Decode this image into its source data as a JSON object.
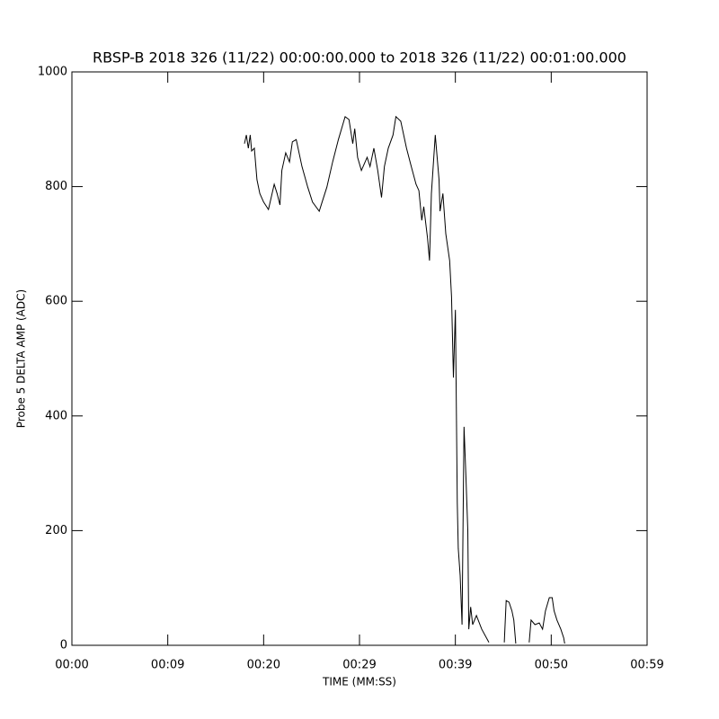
{
  "chart_data": {
    "type": "line",
    "title": "RBSP-B 2018 326 (11/22) 00:00:00.000 to 2018 326 (11/22) 00:01:00.000",
    "x_label": "TIME (MM:SS)",
    "y_label": "Probe 5 DELTA AMP (ADC)",
    "xlim": [
      0,
      60
    ],
    "ylim": [
      0,
      1000
    ],
    "xticks": [
      {
        "value": 0,
        "label": "00:00"
      },
      {
        "value": 10,
        "label": "00:09"
      },
      {
        "value": 20,
        "label": "00:20"
      },
      {
        "value": 30,
        "label": "00:29"
      },
      {
        "value": 40,
        "label": "00:39"
      },
      {
        "value": 50,
        "label": "00:50"
      },
      {
        "value": 60,
        "label": "00:59"
      }
    ],
    "yticks": [
      0,
      200,
      400,
      600,
      800,
      1000
    ],
    "color": "#000000",
    "x": [
      18.0,
      18.2,
      18.4,
      18.6,
      18.75,
      19.03,
      19.3,
      19.6,
      20.0,
      20.5,
      21.1,
      21.4,
      21.7,
      21.9,
      22.3,
      22.7,
      23.0,
      23.4,
      24.0,
      24.6,
      25.1,
      25.8,
      26.1,
      26.6,
      27.2,
      27.8,
      28.5,
      28.9,
      29.3,
      29.5,
      29.8,
      30.2,
      30.8,
      31.1,
      31.5,
      31.9,
      32.3,
      32.6,
      33.0,
      33.5,
      33.8,
      34.3,
      34.9,
      35.4,
      35.9,
      36.2,
      36.5,
      36.7,
      37.1,
      37.3,
      37.5,
      37.9,
      38.3,
      38.4,
      38.7,
      39.0,
      39.4,
      39.6,
      39.8,
      40.0,
      40.2,
      40.3,
      40.5,
      40.7,
      40.9,
      41.1,
      41.3,
      41.4,
      41.6,
      41.8,
      42.2,
      42.75,
      43.5,
      44.3,
      45.1,
      45.3,
      45.6,
      45.9,
      46.1,
      46.3,
      47.0,
      47.7,
      47.9,
      48.3,
      48.75,
      49.1,
      49.4,
      49.8,
      50.1,
      50.3,
      50.6,
      51.0,
      51.3,
      51.4
    ],
    "values": [
      875,
      890,
      867,
      890,
      862,
      867,
      812,
      788,
      773,
      760,
      804,
      788,
      768,
      828,
      859,
      843,
      878,
      882,
      835,
      799,
      773,
      757,
      773,
      799,
      843,
      882,
      922,
      917,
      875,
      901,
      851,
      828,
      851,
      835,
      867,
      828,
      781,
      835,
      867,
      890,
      922,
      914,
      867,
      835,
      804,
      793,
      741,
      765,
      710,
      671,
      788,
      890,
      812,
      757,
      788,
      718,
      671,
      608,
      467,
      585,
      248,
      169,
      122,
      36,
      381,
      295,
      201,
      28,
      67,
      36,
      52,
      28,
      5,
      null,
      5,
      78,
      75,
      60,
      44,
      3,
      null,
      5,
      44,
      36,
      39,
      28,
      60,
      83,
      83,
      60,
      44,
      28,
      13,
      3
    ]
  }
}
